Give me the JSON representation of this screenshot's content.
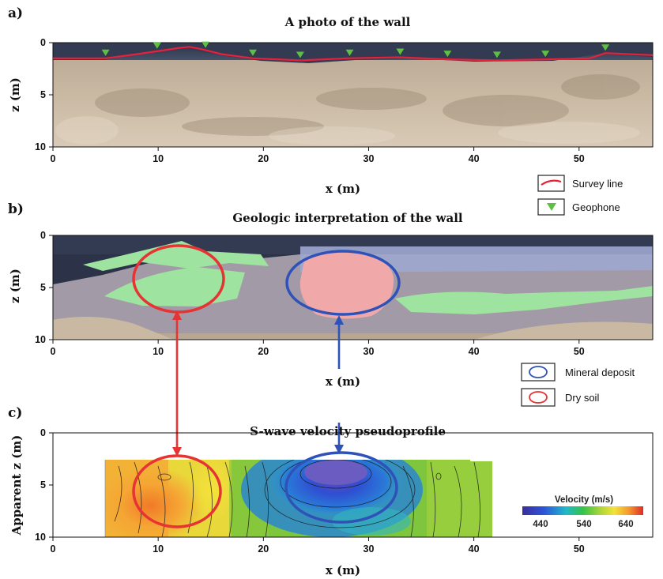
{
  "panels": {
    "a": {
      "label": "a)",
      "title": "A photo of the wall"
    },
    "b": {
      "label": "b)",
      "title": "Geologic interpretation of the wall"
    },
    "c": {
      "label": "c)",
      "title": "S-wave velocity pseudoprofile"
    }
  },
  "axes": {
    "xlabel": "x (m)",
    "zlabel": "z (m)",
    "apparent_zlabel": "Apparent z (m)",
    "x_ticks": [
      "0",
      "10",
      "20",
      "30",
      "40",
      "50"
    ],
    "z_ticks": [
      "0",
      "5",
      "10"
    ]
  },
  "legend_a": {
    "survey_line": "Survey line",
    "geophone": "Geophone"
  },
  "legend_b": {
    "mineral_deposit": "Mineral deposit",
    "dry_soil": "Dry soil"
  },
  "colorbar": {
    "title": "Velocity (m/s)",
    "ticks": [
      "440",
      "540",
      "640"
    ]
  },
  "colors": {
    "survey_line": "#e8203a",
    "geophone": "#5ec043",
    "mineral": "#2f52b8",
    "dry_soil": "#e63333",
    "green_layer": "#9ee3a0",
    "pink_layer": "#f0a8a8"
  },
  "chart_data": [
    {
      "type": "line",
      "title": "A photo of the wall",
      "xlabel": "x (m)",
      "ylabel": "z (m)",
      "xlim": [
        0,
        57
      ],
      "ylim": [
        10,
        0
      ],
      "series": [
        {
          "name": "Survey line",
          "x": [
            0,
            5,
            8,
            10,
            12,
            13,
            14,
            16,
            19,
            23.5,
            28,
            33,
            37.5,
            42,
            47,
            51,
            52.5,
            57
          ],
          "y": [
            1.5,
            1.5,
            1.1,
            0.8,
            0.5,
            0.4,
            0.6,
            1.1,
            1.5,
            1.7,
            1.5,
            1.4,
            1.6,
            1.7,
            1.6,
            1.5,
            1.0,
            1.2
          ]
        }
      ],
      "geophones_x": [
        5,
        9.9,
        14.5,
        19,
        23.5,
        28.2,
        33,
        37.5,
        42.2,
        46.8,
        52.5
      ]
    },
    {
      "type": "heatmap",
      "title": "S-wave velocity pseudoprofile",
      "xlabel": "x (m)",
      "ylabel": "Apparent z (m)",
      "xlim": [
        0,
        57
      ],
      "ylim": [
        10,
        0
      ],
      "colorbar_range": [
        400,
        680
      ],
      "data_extent_x": [
        5,
        42
      ],
      "data_extent_z": [
        2.8,
        10
      ],
      "regions": [
        {
          "x": 10,
          "z": 6,
          "velocity": 640
        },
        {
          "x": 11,
          "z": 4.5,
          "velocity": 660
        },
        {
          "x": 17,
          "z": 6,
          "velocity": 570
        },
        {
          "x": 26,
          "z": 4,
          "velocity": 420
        },
        {
          "x": 30,
          "z": 6,
          "velocity": 470
        },
        {
          "x": 37,
          "z": 6,
          "velocity": 520
        }
      ]
    }
  ]
}
